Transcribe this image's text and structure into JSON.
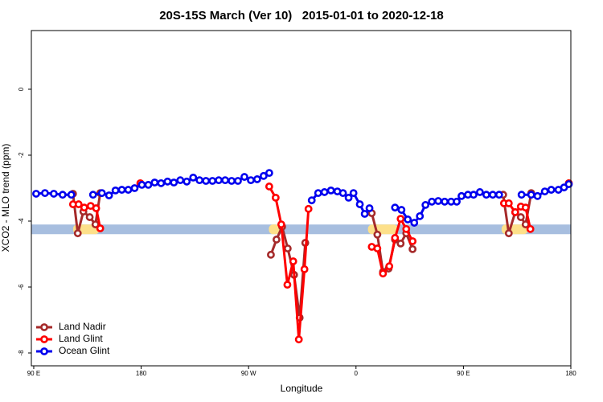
{
  "chart_data": {
    "type": "line",
    "title": "20S-15S March (Ver 10)   2015-01-01 to 2020-12-18",
    "x_label": "Longitude",
    "y_label": "XCO2 - MLO trend (ppm)",
    "xlim": [
      88,
      540
    ],
    "ylim": [
      -8.39,
      1.78
    ],
    "xticks": [
      {
        "value": 90,
        "label": "90 E"
      },
      {
        "value": 180,
        "label": "180"
      },
      {
        "value": 270,
        "label": "90 W"
      },
      {
        "value": 360,
        "label": "0"
      },
      {
        "value": 450,
        "label": "90 E"
      },
      {
        "value": 540,
        "label": "180"
      }
    ],
    "yticks": [
      0,
      -2,
      -4,
      -6,
      -8
    ],
    "legend": "bottom-left",
    "band": {
      "y": -4.25,
      "color": "#a7bedf",
      "land_color": "#fde08a",
      "land_ranges": [
        [
          123,
          145
        ],
        [
          287,
          296
        ],
        [
          370,
          395
        ],
        [
          482,
          504
        ]
      ]
    },
    "series": [
      {
        "name": "Land Nadir",
        "color": "#a52a2a",
        "x": [
          122.9,
          126.9,
          131.6,
          136.9,
          141.7,
          145.7,
          200,
          288.7,
          293.4,
          298.1,
          302.8,
          308.1,
          312.8,
          317.5,
          340,
          373.2,
          377.9,
          382.6,
          387.3,
          392.7,
          397.4,
          402.1,
          407.4,
          450,
          483.3,
          488.0,
          493.4,
          498.1,
          502.1,
          506.8
        ],
        "values": [
          -3.17,
          -4.37,
          -3.71,
          -3.88,
          -4.1,
          -3.15,
          null,
          -5.02,
          -4.56,
          -4.17,
          -4.83,
          -5.63,
          -6.93,
          -4.66,
          null,
          -3.76,
          -4.41,
          -5.54,
          -5.44,
          -4.56,
          -4.68,
          -4.37,
          -4.85,
          null,
          -3.2,
          -4.37,
          -3.73,
          -3.88,
          -4.1,
          -3.15
        ]
      },
      {
        "name": "Land Glint",
        "color": "#ff0000",
        "x": [
          122.9,
          127.6,
          132.3,
          137.7,
          142.3,
          145.7,
          160,
          179.3,
          200,
          287.3,
          292.7,
          297.4,
          302.5,
          307.4,
          312.1,
          316.8,
          320.2,
          340,
          373.2,
          377.9,
          382.6,
          387.9,
          392.7,
          397.4,
          402.1,
          407.4,
          450,
          484.0,
          488.0,
          493.4,
          498.1,
          502.1,
          506.1,
          520,
          538.3
        ],
        "values": [
          -3.49,
          -3.49,
          -3.59,
          -3.54,
          -3.61,
          -4.22,
          null,
          -2.85,
          null,
          -2.95,
          -3.29,
          -4.1,
          -5.93,
          -5.22,
          -7.59,
          -5.46,
          -3.63,
          null,
          -4.78,
          -4.83,
          -5.59,
          -5.37,
          -4.51,
          -3.93,
          -4.24,
          -4.61,
          null,
          -3.46,
          -3.46,
          -3.73,
          -3.56,
          -3.59,
          -4.24,
          null,
          -2.85
        ]
      },
      {
        "name": "Ocean Glint",
        "color": "#0000ee",
        "x": [
          92.0,
          99.4,
          106.8,
          114.2,
          121.5,
          130,
          139.7,
          147.1,
          153.1,
          158.5,
          163.8,
          169.2,
          174.5,
          180.6,
          186.0,
          191.3,
          196.7,
          202.1,
          207.4,
          212.8,
          218.2,
          223.6,
          228.9,
          234.3,
          239.7,
          245.0,
          250.4,
          255.8,
          261.1,
          266.5,
          271.9,
          277.2,
          282.6,
          287.3,
          305,
          322.9,
          328.3,
          333.6,
          339.0,
          344.4,
          349.1,
          353.8,
          357.9,
          363.2,
          367.3,
          371.3,
          380,
          392.7,
          398.1,
          403.4,
          408.8,
          413.5,
          418.2,
          423.6,
          428.9,
          434.3,
          439.7,
          444.4,
          448.4,
          453.8,
          458.5,
          463.8,
          469.2,
          474.6,
          479.9,
          490,
          498.7,
          506.8,
          512.1,
          518.2,
          523.6,
          529.6,
          534.3,
          538.3
        ],
        "values": [
          -3.17,
          -3.15,
          -3.17,
          -3.2,
          -3.2,
          null,
          -3.2,
          -3.15,
          -3.22,
          -3.07,
          -3.05,
          -3.05,
          -3.0,
          -2.9,
          -2.9,
          -2.83,
          -2.85,
          -2.8,
          -2.83,
          -2.76,
          -2.8,
          -2.68,
          -2.76,
          -2.78,
          -2.78,
          -2.76,
          -2.76,
          -2.78,
          -2.78,
          -2.66,
          -2.76,
          -2.73,
          -2.63,
          -2.54,
          null,
          -3.37,
          -3.15,
          -3.12,
          -3.07,
          -3.1,
          -3.15,
          -3.29,
          -3.15,
          -3.49,
          -3.78,
          -3.61,
          null,
          -3.59,
          -3.66,
          -3.95,
          -4.05,
          -3.85,
          -3.51,
          -3.41,
          -3.39,
          -3.41,
          -3.41,
          -3.41,
          -3.24,
          -3.2,
          -3.2,
          -3.12,
          -3.2,
          -3.2,
          -3.2,
          null,
          -3.2,
          -3.2,
          -3.24,
          -3.1,
          -3.05,
          -3.05,
          -2.98,
          -2.88
        ]
      }
    ]
  }
}
